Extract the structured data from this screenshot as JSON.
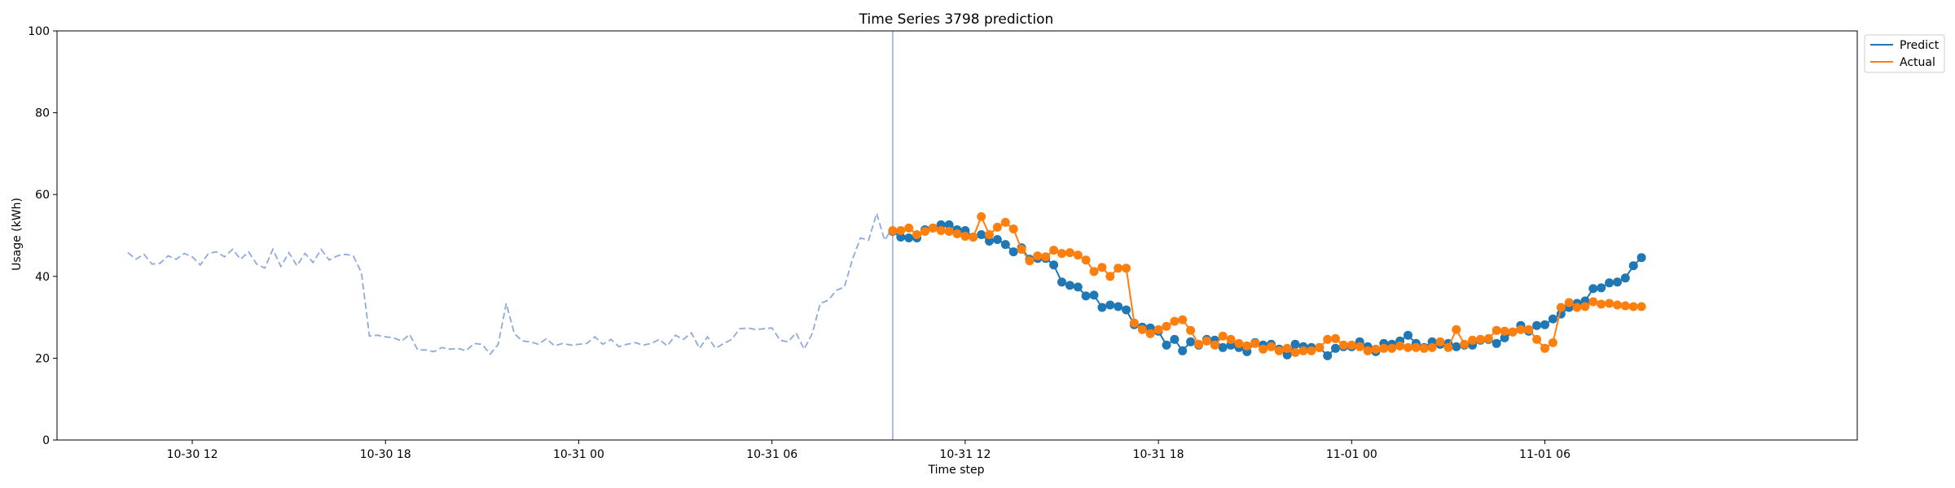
{
  "chart_data": {
    "type": "line",
    "title": "Time Series 3798 prediction",
    "xlabel": "Time step",
    "ylabel": "Usage (kWh)",
    "ylim": [
      0,
      100
    ],
    "yticks": [
      0,
      20,
      40,
      60,
      80,
      100
    ],
    "xlim": [
      "2024-10-30 07:48",
      "2024-11-01 15:42"
    ],
    "xticks": [
      {
        "t": "2024-10-30 12:00",
        "label": "10-30 12"
      },
      {
        "t": "2024-10-30 18:00",
        "label": "10-30 18"
      },
      {
        "t": "2024-10-31 00:00",
        "label": "10-31 00"
      },
      {
        "t": "2024-10-31 06:00",
        "label": "10-31 06"
      },
      {
        "t": "2024-10-31 12:00",
        "label": "10-31 12"
      },
      {
        "t": "2024-10-31 18:00",
        "label": "10-31 18"
      },
      {
        "t": "2024-11-01 00:00",
        "label": "11-01 00"
      },
      {
        "t": "2024-11-01 06:00",
        "label": "11-01 06"
      }
    ],
    "split_time": "2024-10-31 09:45",
    "grid": false,
    "legend_placement": "upper-right-outside",
    "history": {
      "start": "2024-10-30 10:00",
      "step_minutes": 15,
      "style": "dashed",
      "color": "#8faadc",
      "values": [
        45.8,
        44.2,
        45.4,
        43.0,
        43.2,
        45.0,
        44.2,
        45.6,
        44.8,
        42.8,
        45.6,
        46.0,
        44.8,
        46.6,
        44.2,
        46.0,
        43.0,
        42.0,
        46.6,
        42.4,
        45.8,
        42.6,
        45.6,
        43.4,
        46.6,
        44.0,
        45.0,
        45.4,
        45.0,
        41.0,
        25.4,
        25.6,
        25.2,
        25.0,
        24.2,
        25.8,
        22.0,
        22.0,
        21.6,
        22.6,
        22.2,
        22.4,
        21.8,
        23.6,
        23.4,
        21.0,
        23.4,
        33.4,
        26.0,
        24.2,
        24.0,
        23.4,
        24.8,
        23.0,
        23.6,
        23.2,
        23.4,
        23.6,
        25.2,
        23.4,
        24.6,
        22.8,
        23.4,
        23.8,
        23.2,
        23.6,
        24.6,
        23.0,
        25.6,
        24.6,
        26.2,
        22.4,
        25.2,
        22.4,
        23.6,
        24.6,
        27.2,
        27.4,
        27.0,
        27.2,
        27.4,
        24.4,
        24.0,
        26.2,
        22.2,
        26.0,
        33.4,
        34.2,
        36.6,
        37.4,
        44.2,
        49.4,
        48.8,
        55.4,
        48.8,
        52.0,
        51.2
      ]
    },
    "series": [
      {
        "name": "Predict",
        "color": "#1f77b4",
        "start": "2024-10-31 09:45",
        "step_minutes": 15,
        "values": [
          51.0,
          49.6,
          49.4,
          49.4,
          51.4,
          51.8,
          52.6,
          52.6,
          51.4,
          51.2,
          49.6,
          50.2,
          48.6,
          49.0,
          47.8,
          46.0,
          47.0,
          44.2,
          44.4,
          44.4,
          42.8,
          38.6,
          37.8,
          37.4,
          35.2,
          35.4,
          32.4,
          33.0,
          32.6,
          31.8,
          28.2,
          27.6,
          27.4,
          26.6,
          23.2,
          24.6,
          21.8,
          24.0,
          23.2,
          24.6,
          24.4,
          22.6,
          23.2,
          22.6,
          21.6,
          23.8,
          23.2,
          23.4,
          22.2,
          20.8,
          23.4,
          22.8,
          22.6,
          22.6,
          20.6,
          22.4,
          22.8,
          22.8,
          24.0,
          22.8,
          21.6,
          23.6,
          23.4,
          24.2,
          25.6,
          23.6,
          22.6,
          24.0,
          23.4,
          23.6,
          22.8,
          23.2,
          23.2,
          24.4,
          24.6,
          23.6,
          25.0,
          26.4,
          28.0,
          26.6,
          28.0,
          28.2,
          29.6,
          30.8,
          32.4,
          33.4,
          34.0,
          37.0,
          37.2,
          38.4,
          38.6,
          39.6,
          42.6,
          44.6
        ]
      },
      {
        "name": "Actual",
        "color": "#ff7f0e",
        "start": "2024-10-31 09:45",
        "step_minutes": 15,
        "values": [
          51.2,
          51.2,
          51.8,
          50.2,
          51.0,
          51.8,
          51.2,
          51.0,
          50.4,
          49.8,
          49.6,
          54.6,
          50.2,
          52.0,
          53.2,
          51.6,
          46.6,
          43.8,
          45.0,
          44.8,
          46.4,
          45.6,
          45.8,
          45.2,
          44.0,
          41.2,
          42.2,
          40.0,
          42.0,
          42.0,
          28.6,
          27.0,
          26.0,
          27.0,
          27.8,
          29.0,
          29.4,
          26.8,
          23.4,
          24.2,
          23.2,
          25.4,
          24.6,
          23.6,
          23.0,
          23.6,
          22.2,
          22.8,
          21.8,
          22.4,
          21.4,
          21.8,
          21.8,
          22.6,
          24.6,
          24.8,
          23.2,
          23.2,
          22.8,
          21.8,
          22.2,
          22.4,
          22.4,
          23.0,
          22.6,
          22.6,
          22.4,
          22.6,
          24.0,
          22.6,
          27.0,
          23.4,
          24.4,
          24.6,
          24.8,
          26.8,
          26.6,
          26.4,
          27.0,
          27.0,
          24.6,
          22.4,
          23.8,
          32.4,
          33.6,
          32.4,
          32.6,
          33.8,
          33.2,
          33.4,
          33.0,
          32.8,
          32.6,
          32.6
        ]
      }
    ]
  }
}
